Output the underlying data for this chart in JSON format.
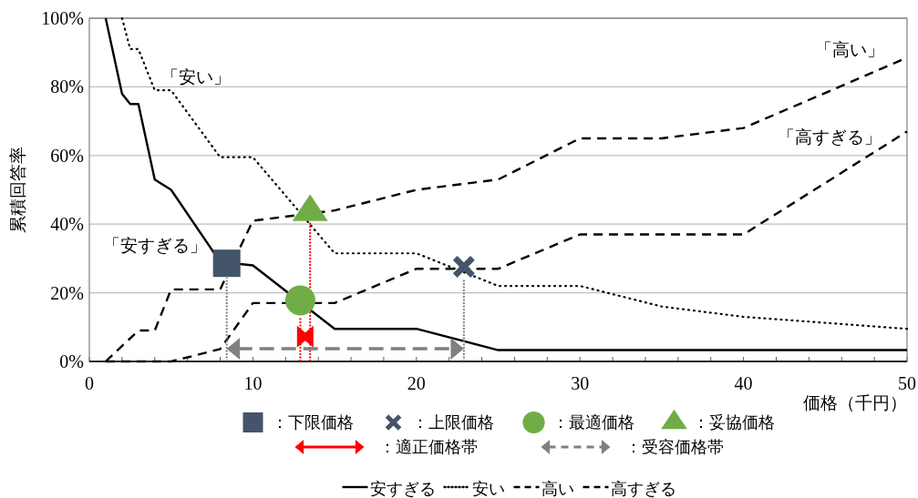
{
  "chart_data": {
    "type": "line",
    "xlabel": "価格（千円）",
    "ylabel": "累積回答率",
    "xlim": [
      0,
      50
    ],
    "ylim": [
      0,
      100
    ],
    "xticks": [
      0,
      {
        "value": 2,
        "label": null
      },
      {
        "value": 4,
        "label": null
      },
      {
        "value": 6,
        "label": null
      },
      {
        "value": 8,
        "label": null
      },
      10,
      {
        "value": 12,
        "label": null
      },
      {
        "value": 14,
        "label": null
      },
      {
        "value": 16,
        "label": null
      },
      {
        "value": 18,
        "label": null
      },
      20,
      {
        "value": 22,
        "label": null
      },
      {
        "value": 24,
        "label": null
      },
      {
        "value": 26,
        "label": null
      },
      {
        "value": 28,
        "label": null
      },
      30,
      {
        "value": 32,
        "label": null
      },
      {
        "value": 34,
        "label": null
      },
      {
        "value": 36,
        "label": null
      },
      {
        "value": 38,
        "label": null
      },
      40,
      {
        "value": 42,
        "label": null
      },
      {
        "value": 44,
        "label": null
      },
      {
        "value": 46,
        "label": null
      },
      {
        "value": 48,
        "label": null
      },
      50
    ],
    "yticks": [
      {
        "value": 0,
        "label": "0%"
      },
      {
        "value": 20,
        "label": "20%"
      },
      {
        "value": 40,
        "label": "40%"
      },
      {
        "value": 60,
        "label": "60%"
      },
      {
        "value": 80,
        "label": "80%"
      },
      {
        "value": 100,
        "label": "100%"
      }
    ],
    "grid": "y",
    "legend": "bottom",
    "series": [
      {
        "name": "安すぎる",
        "color": "#000000",
        "line_style": "solid",
        "x": [
          1,
          2,
          2.5,
          3,
          4,
          5,
          8,
          10,
          15,
          20,
          25,
          50
        ],
        "values": [
          100,
          78,
          75,
          75,
          53,
          50,
          29,
          28,
          9.5,
          9.5,
          3.3,
          3.3
        ]
      },
      {
        "name": "安い",
        "color": "#000000",
        "line_style": "dotted",
        "x": [
          2,
          2.5,
          3,
          4,
          5,
          8,
          10,
          15,
          20,
          25,
          30,
          35,
          40,
          50
        ],
        "values": [
          100,
          91,
          91,
          79,
          79,
          59.5,
          59.5,
          31.5,
          31.5,
          22,
          22,
          16,
          13,
          9.5
        ]
      },
      {
        "name": "高い",
        "color": "#000000",
        "line_style": "dashed",
        "x": [
          1,
          3,
          4,
          5,
          8,
          10,
          15,
          20,
          25,
          30,
          35,
          40,
          50
        ],
        "values": [
          0,
          9,
          9,
          21,
          21,
          41,
          44,
          50,
          53,
          65,
          65,
          68,
          88.5
        ]
      },
      {
        "name": "高すぎる",
        "color": "#000000",
        "line_style": "dashed",
        "x": [
          1,
          5,
          8,
          10,
          15,
          20,
          25,
          30,
          40,
          50
        ],
        "values": [
          0,
          0,
          3.6,
          17,
          17,
          27,
          27,
          37,
          37,
          67
        ]
      },
      {
        "color": "#ff0000",
        "line_style": "dotted",
        "x": [
          12.9,
          12.9
        ],
        "values": [
          0,
          13
        ]
      },
      {
        "color": "#ff0000",
        "line_style": "dotted",
        "x": [
          13.5,
          13.5
        ],
        "values": [
          0,
          40.5
        ]
      },
      {
        "color": "#808080",
        "line_style": "dotted",
        "x": [
          8.4,
          8.4
        ],
        "values": [
          0,
          24.5
        ]
      },
      {
        "color": "#808080",
        "line_style": "dotted",
        "x": [
          22.9,
          22.9
        ],
        "values": [
          0,
          24
        ]
      },
      {
        "name": "：下限価格",
        "type": "scatter",
        "marker": "square",
        "color": "#44546a",
        "x": [
          8.4
        ],
        "values": [
          28.6
        ]
      },
      {
        "name": "：上限価格",
        "type": "scatter",
        "marker": "cross",
        "color": "#44546a",
        "x": [
          22.9
        ],
        "values": [
          27.6
        ]
      },
      {
        "name": "：最適価格",
        "type": "scatter",
        "marker": "circle",
        "color": "#70ad47",
        "x": [
          12.9
        ],
        "values": [
          17.8
        ]
      },
      {
        "name": "：妥協価格",
        "type": "scatter",
        "marker": "triangle",
        "color": "#70ad47",
        "x": [
          13.5
        ],
        "values": [
          43.5
        ]
      }
    ],
    "annotations": [
      "「安い」",
      "「安すぎる」",
      "「高い」",
      "「高すぎる」",
      "：適正価格帯",
      "：受容価格帯"
    ]
  }
}
